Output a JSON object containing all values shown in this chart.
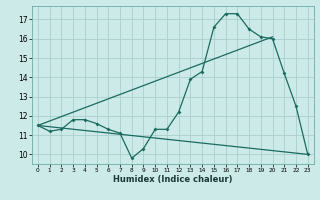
{
  "title": "",
  "xlabel": "Humidex (Indice chaleur)",
  "bg_color": "#cceae7",
  "grid_color": "#aacfcc",
  "line_color": "#1a6b60",
  "xlim": [
    -0.5,
    23.5
  ],
  "ylim": [
    9.5,
    17.7
  ],
  "xticks": [
    0,
    1,
    2,
    3,
    4,
    5,
    6,
    7,
    8,
    9,
    10,
    11,
    12,
    13,
    14,
    15,
    16,
    17,
    18,
    19,
    20,
    21,
    22,
    23
  ],
  "yticks": [
    10,
    11,
    12,
    13,
    14,
    15,
    16,
    17
  ],
  "curve1_x": [
    0,
    1,
    2,
    3,
    4,
    5,
    6,
    7,
    8,
    9,
    10,
    11,
    12,
    13,
    14,
    15,
    16,
    17,
    18,
    19,
    20,
    21,
    22,
    23
  ],
  "curve1_y": [
    11.5,
    11.2,
    11.3,
    11.8,
    11.8,
    11.6,
    11.3,
    11.1,
    9.8,
    10.3,
    11.3,
    11.3,
    12.2,
    13.9,
    14.3,
    16.6,
    17.3,
    17.3,
    16.5,
    16.1,
    16.0,
    14.2,
    12.5,
    10.0
  ],
  "curve2_x": [
    0,
    20
  ],
  "curve2_y": [
    11.5,
    16.1
  ],
  "curve3_x": [
    0,
    23
  ],
  "curve3_y": [
    11.5,
    10.0
  ],
  "marker_size": 2.0,
  "line_width": 0.9,
  "xtick_fontsize": 4.2,
  "ytick_fontsize": 5.5,
  "xlabel_fontsize": 6.0
}
